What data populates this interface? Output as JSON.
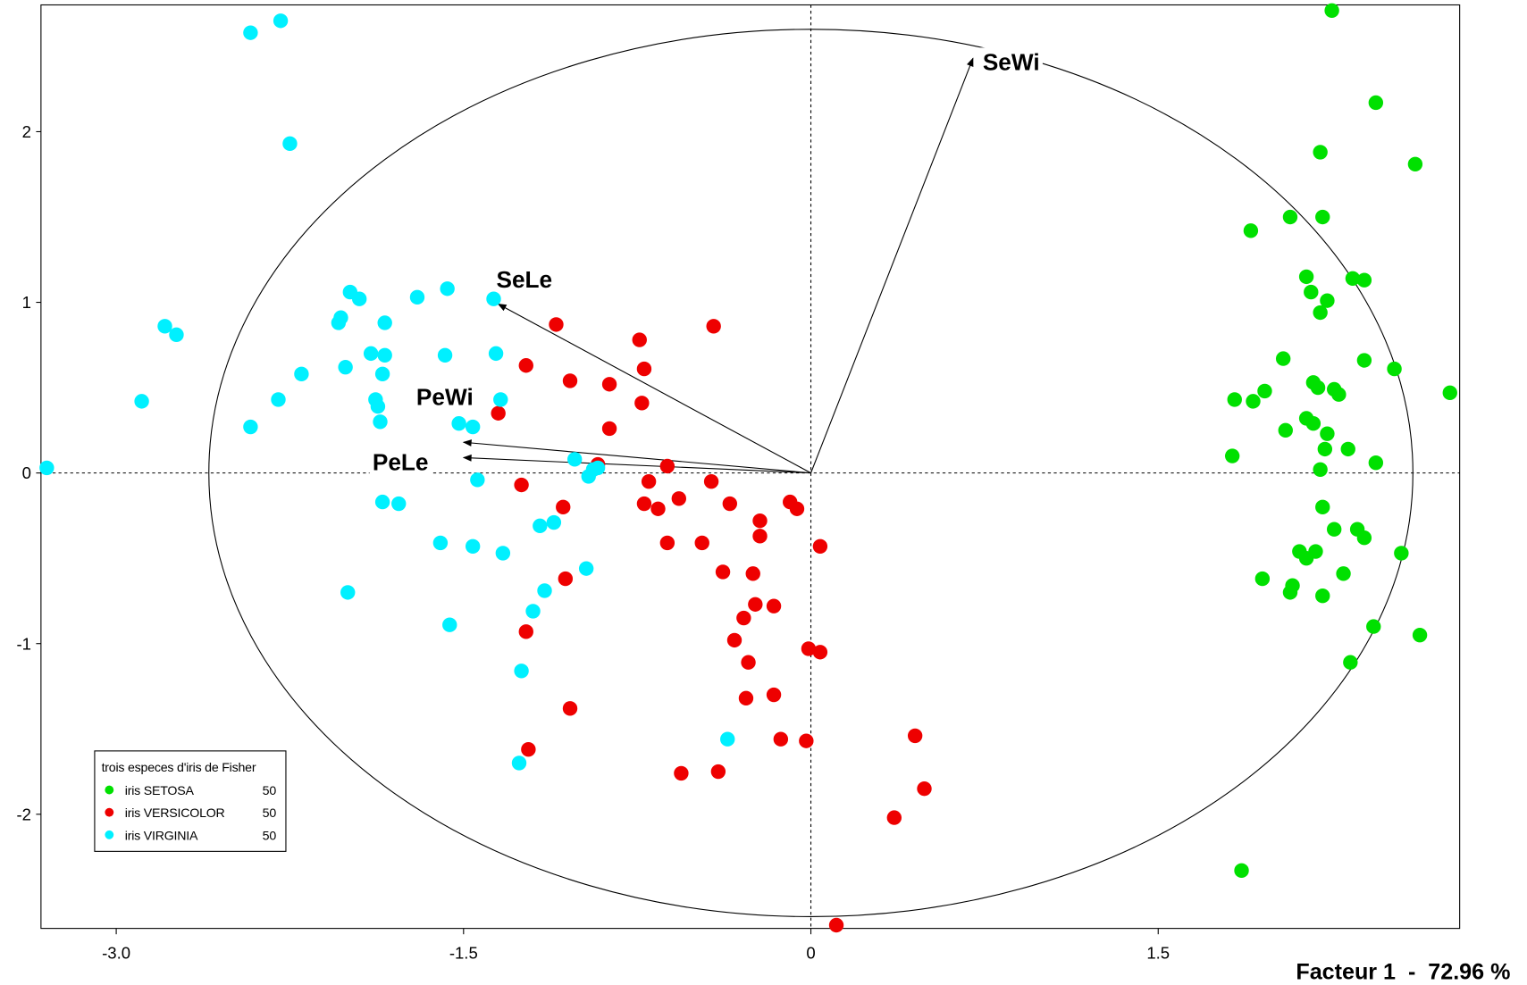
{
  "chart_data": {
    "type": "scatter",
    "title": "",
    "xlabel": "Facteur 1  -  72.96 %",
    "ylabel": "",
    "xlim": [
      -3.325,
      2.802
    ],
    "ylim": [
      -2.669,
      2.743
    ],
    "x_ticks": [
      "-3.0",
      "-1.5",
      "0",
      "1.5"
    ],
    "y_ticks": [
      "2",
      "1",
      "0",
      "-1",
      "-2"
    ],
    "grid": false,
    "origin_lines": "dashed",
    "correlation_circle_radius": 2.6,
    "legend": {
      "title": "trois especes d'iris de Fisher",
      "placement": "bottom-left"
    },
    "vectors": [
      {
        "label": "SeWi",
        "x": 0.7,
        "y": 2.43,
        "label_position": "right"
      },
      {
        "label": "SeLe",
        "x": -1.35,
        "y": 0.99,
        "label_position": "above"
      },
      {
        "label": "PeWi",
        "x": -1.5,
        "y": 0.18,
        "label_position": "above-left"
      },
      {
        "label": "PeLe",
        "x": -1.5,
        "y": 0.09,
        "label_position": "left"
      }
    ],
    "series": [
      {
        "name": "iris SETOSA",
        "count": "50",
        "color": "#00e000",
        "points": [
          [
            2.25,
            2.71
          ],
          [
            2.44,
            2.17
          ],
          [
            2.61,
            1.81
          ],
          [
            2.2,
            1.88
          ],
          [
            1.9,
            1.42
          ],
          [
            2.07,
            1.5
          ],
          [
            2.21,
            1.5
          ],
          [
            2.14,
            1.15
          ],
          [
            2.16,
            1.06
          ],
          [
            2.23,
            1.01
          ],
          [
            2.2,
            0.94
          ],
          [
            2.34,
            1.14
          ],
          [
            2.39,
            1.13
          ],
          [
            2.04,
            0.67
          ],
          [
            2.17,
            0.53
          ],
          [
            2.19,
            0.5
          ],
          [
            2.26,
            0.49
          ],
          [
            2.28,
            0.46
          ],
          [
            2.39,
            0.66
          ],
          [
            2.52,
            0.61
          ],
          [
            2.76,
            0.47
          ],
          [
            1.96,
            0.48
          ],
          [
            1.83,
            0.43
          ],
          [
            1.91,
            0.42
          ],
          [
            2.14,
            0.32
          ],
          [
            2.17,
            0.29
          ],
          [
            2.23,
            0.23
          ],
          [
            2.05,
            0.25
          ],
          [
            2.22,
            0.14
          ],
          [
            2.32,
            0.14
          ],
          [
            1.82,
            0.1
          ],
          [
            2.44,
            0.06
          ],
          [
            2.2,
            0.02
          ],
          [
            2.21,
            -0.2
          ],
          [
            2.26,
            -0.33
          ],
          [
            2.36,
            -0.33
          ],
          [
            2.39,
            -0.38
          ],
          [
            2.11,
            -0.46
          ],
          [
            2.18,
            -0.46
          ],
          [
            2.14,
            -0.5
          ],
          [
            2.55,
            -0.47
          ],
          [
            1.95,
            -0.62
          ],
          [
            2.3,
            -0.59
          ],
          [
            2.08,
            -0.66
          ],
          [
            2.07,
            -0.7
          ],
          [
            2.21,
            -0.72
          ],
          [
            2.43,
            -0.9
          ],
          [
            2.63,
            -0.95
          ],
          [
            2.33,
            -1.11
          ],
          [
            1.86,
            -2.33
          ]
        ]
      },
      {
        "name": "iris VERSICOLOR",
        "count": "50",
        "color": "#ee0000",
        "points": [
          [
            -1.1,
            0.87
          ],
          [
            -0.42,
            0.86
          ],
          [
            -0.74,
            0.78
          ],
          [
            -1.23,
            0.63
          ],
          [
            -0.72,
            0.61
          ],
          [
            -1.04,
            0.54
          ],
          [
            -0.87,
            0.52
          ],
          [
            -0.73,
            0.41
          ],
          [
            -1.35,
            0.35
          ],
          [
            -0.87,
            0.26
          ],
          [
            -0.92,
            0.05
          ],
          [
            -0.62,
            0.04
          ],
          [
            -1.25,
            -0.07
          ],
          [
            -0.7,
            -0.05
          ],
          [
            -0.43,
            -0.05
          ],
          [
            -0.57,
            -0.15
          ],
          [
            -0.72,
            -0.18
          ],
          [
            -0.66,
            -0.21
          ],
          [
            -0.35,
            -0.18
          ],
          [
            -0.09,
            -0.17
          ],
          [
            -0.06,
            -0.21
          ],
          [
            -1.07,
            -0.2
          ],
          [
            -0.22,
            -0.28
          ],
          [
            -0.22,
            -0.37
          ],
          [
            -0.62,
            -0.41
          ],
          [
            -0.47,
            -0.41
          ],
          [
            0.04,
            -0.43
          ],
          [
            -0.38,
            -0.58
          ],
          [
            -0.25,
            -0.59
          ],
          [
            -1.06,
            -0.62
          ],
          [
            -0.24,
            -0.77
          ],
          [
            -0.16,
            -0.78
          ],
          [
            -0.29,
            -0.85
          ],
          [
            -1.23,
            -0.93
          ],
          [
            -0.33,
            -0.98
          ],
          [
            -0.01,
            -1.03
          ],
          [
            0.04,
            -1.05
          ],
          [
            -0.27,
            -1.11
          ],
          [
            -0.16,
            -1.3
          ],
          [
            -0.28,
            -1.32
          ],
          [
            -1.04,
            -1.38
          ],
          [
            0.45,
            -1.54
          ],
          [
            -0.13,
            -1.56
          ],
          [
            -0.02,
            -1.57
          ],
          [
            -1.22,
            -1.62
          ],
          [
            -0.56,
            -1.76
          ],
          [
            -0.4,
            -1.75
          ],
          [
            0.49,
            -1.85
          ],
          [
            0.36,
            -2.02
          ],
          [
            0.11,
            -2.65
          ]
        ]
      },
      {
        "name": "iris VIRGINIA",
        "count": "50",
        "color": "#00f0ff",
        "points": [
          [
            -2.29,
            2.65
          ],
          [
            -2.42,
            2.58
          ],
          [
            -2.25,
            1.93
          ],
          [
            -1.99,
            1.06
          ],
          [
            -1.95,
            1.02
          ],
          [
            -1.57,
            1.08
          ],
          [
            -1.7,
            1.03
          ],
          [
            -1.37,
            1.02
          ],
          [
            -2.03,
            0.91
          ],
          [
            -2.04,
            0.88
          ],
          [
            -1.84,
            0.88
          ],
          [
            -2.79,
            0.86
          ],
          [
            -2.74,
            0.81
          ],
          [
            -1.9,
            0.7
          ],
          [
            -1.84,
            0.69
          ],
          [
            -1.58,
            0.69
          ],
          [
            -1.36,
            0.7
          ],
          [
            -2.01,
            0.62
          ],
          [
            -2.2,
            0.58
          ],
          [
            -1.85,
            0.58
          ],
          [
            -2.89,
            0.42
          ],
          [
            -2.3,
            0.43
          ],
          [
            -1.88,
            0.43
          ],
          [
            -1.87,
            0.39
          ],
          [
            -1.34,
            0.43
          ],
          [
            -1.86,
            0.3
          ],
          [
            -1.52,
            0.29
          ],
          [
            -1.46,
            0.27
          ],
          [
            -2.42,
            0.27
          ],
          [
            -3.3,
            0.03
          ],
          [
            -1.02,
            0.08
          ],
          [
            -0.94,
            0.02
          ],
          [
            -0.96,
            -0.02
          ],
          [
            -1.44,
            -0.04
          ],
          [
            -1.85,
            -0.17
          ],
          [
            -1.78,
            -0.18
          ],
          [
            -1.11,
            -0.29
          ],
          [
            -1.17,
            -0.31
          ],
          [
            -1.6,
            -0.41
          ],
          [
            -1.46,
            -0.43
          ],
          [
            -1.33,
            -0.47
          ],
          [
            -0.97,
            -0.56
          ],
          [
            -1.15,
            -0.69
          ],
          [
            -2.0,
            -0.7
          ],
          [
            -1.2,
            -0.81
          ],
          [
            -1.56,
            -0.89
          ],
          [
            -1.25,
            -1.16
          ],
          [
            -0.36,
            -1.56
          ],
          [
            -1.26,
            -1.7
          ],
          [
            -0.92,
            0.03
          ]
        ]
      }
    ]
  }
}
